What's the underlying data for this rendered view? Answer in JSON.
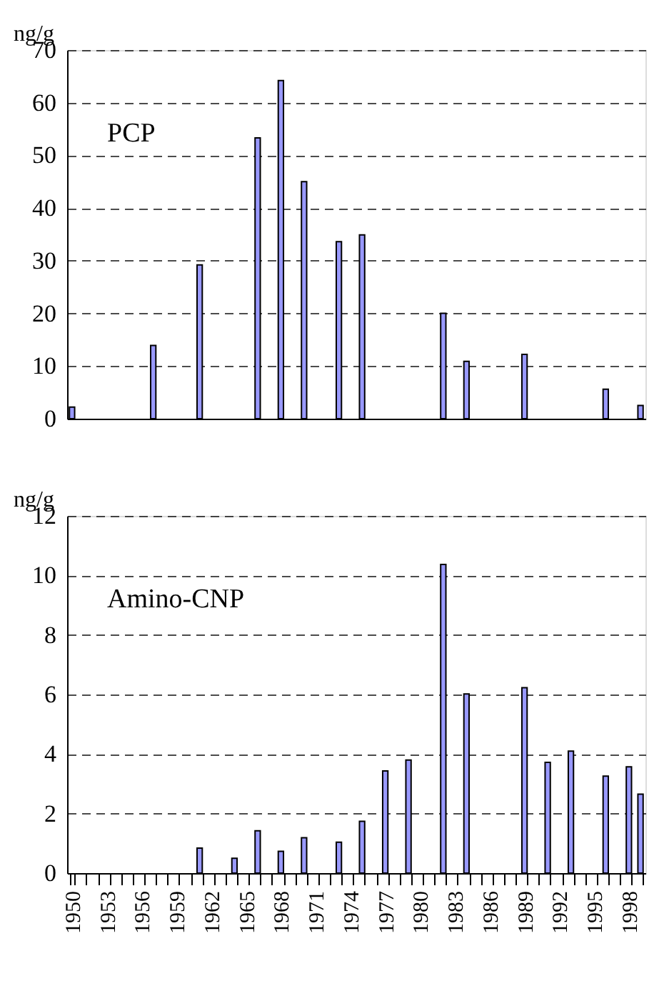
{
  "chart_data": [
    {
      "type": "bar",
      "ylabel": "ng/g",
      "annotations": [
        "PCP"
      ],
      "color": "#9999ff",
      "categories": [
        "1950",
        null,
        null,
        "1953",
        null,
        null,
        "1956",
        null,
        null,
        "1959",
        null,
        null,
        "1962",
        null,
        null,
        "1965",
        null,
        null,
        "1968",
        null,
        null,
        "1971",
        null,
        null,
        "1974",
        null,
        null,
        "1977",
        null,
        null,
        "1980",
        null,
        null,
        "1983",
        null,
        null,
        "1986",
        null,
        null,
        "1989",
        null,
        null,
        "1992",
        null,
        null,
        "1995",
        null,
        null,
        "1998",
        null
      ],
      "values": [
        2.2,
        null,
        null,
        null,
        null,
        null,
        null,
        13.9,
        null,
        null,
        null,
        29.2,
        null,
        null,
        null,
        null,
        53.3,
        null,
        64.2,
        null,
        45.0,
        null,
        null,
        33.6,
        null,
        34.9,
        null,
        null,
        null,
        null,
        null,
        null,
        20.0,
        null,
        10.9,
        null,
        null,
        null,
        null,
        12.2,
        null,
        null,
        null,
        null,
        null,
        null,
        5.6,
        null,
        null,
        2.5
      ],
      "ylim": [
        0,
        70
      ],
      "yticks": [
        0,
        10,
        20,
        30,
        40,
        50,
        60,
        70
      ],
      "grid": "y",
      "tick_labels": "y"
    },
    {
      "type": "bar",
      "ylabel": "ng/g",
      "annotations": [
        "Amino-CNP"
      ],
      "color": "#9999ff",
      "categories": [
        "1950",
        null,
        null,
        "1953",
        null,
        null,
        "1956",
        null,
        null,
        "1959",
        null,
        null,
        "1962",
        null,
        null,
        "1965",
        null,
        null,
        "1968",
        null,
        null,
        "1971",
        null,
        null,
        "1974",
        null,
        null,
        "1977",
        null,
        null,
        "1980",
        null,
        null,
        "1983",
        null,
        null,
        "1986",
        null,
        null,
        "1989",
        null,
        null,
        "1992",
        null,
        null,
        "1995",
        null,
        null,
        "1998",
        null
      ],
      "values": [
        null,
        null,
        null,
        null,
        null,
        null,
        null,
        null,
        null,
        null,
        null,
        0.84,
        null,
        null,
        0.5,
        null,
        1.42,
        null,
        0.73,
        null,
        1.19,
        null,
        null,
        1.04,
        null,
        1.74,
        null,
        3.43,
        null,
        3.8,
        null,
        null,
        10.37,
        null,
        6.02,
        null,
        null,
        null,
        null,
        6.23,
        null,
        3.72,
        null,
        4.1,
        null,
        null,
        3.26,
        null,
        3.57,
        2.65
      ],
      "ylim": [
        0,
        12
      ],
      "yticks": [
        0,
        2,
        4,
        6,
        8,
        10,
        12
      ],
      "grid": "y"
    }
  ]
}
